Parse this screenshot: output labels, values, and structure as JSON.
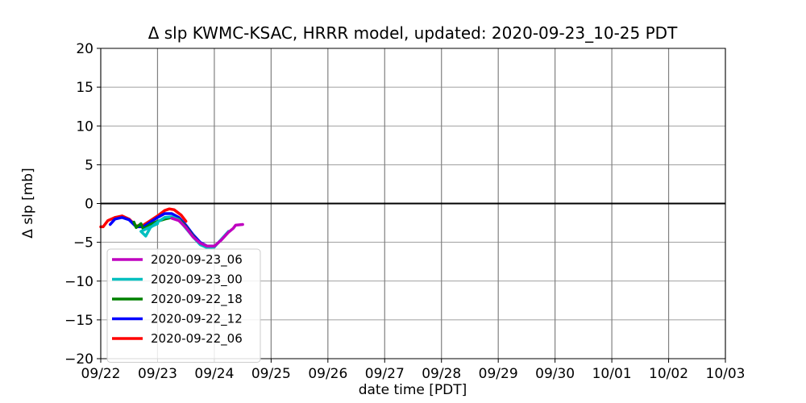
{
  "chart_data": {
    "type": "line",
    "title": "Δ slp KWMC-KSAC, HRRR model, updated: 2020-09-23_10-25 PDT",
    "xlabel": "date time [PDT]",
    "ylabel": "Δ slp [mb]",
    "xlim": [
      "2020-09-22 00:00",
      "2020-10-03 00:00"
    ],
    "ylim": [
      -20,
      20
    ],
    "x_ticks": [
      "09/22",
      "09/23",
      "09/24",
      "09/25",
      "09/26",
      "09/27",
      "09/28",
      "09/29",
      "09/30",
      "10/01",
      "10/02",
      "10/03"
    ],
    "y_ticks": [
      20,
      15,
      10,
      5,
      0,
      -5,
      -10,
      -15,
      -20
    ],
    "y_tick_labels": [
      "20",
      "15",
      "10",
      "5",
      "0",
      "−5",
      "−10",
      "−15",
      "−20"
    ],
    "grid": true,
    "zero_line": 0,
    "legend_position": "lower-left",
    "series": [
      {
        "name": "2020-09-23_06",
        "color": "#bf00bf",
        "points": [
          [
            "2020-09-23 06:00",
            -1.9
          ],
          [
            "2020-09-23 09:00",
            -2.2
          ],
          [
            "2020-09-23 12:00",
            -3.1
          ],
          [
            "2020-09-23 15:00",
            -4.3
          ],
          [
            "2020-09-23 18:00",
            -5.1
          ],
          [
            "2020-09-23 21:00",
            -5.5
          ],
          [
            "2020-09-24 00:00",
            -5.5
          ],
          [
            "2020-09-24 03:00",
            -4.7
          ],
          [
            "2020-09-24 06:00",
            -3.7
          ],
          [
            "2020-09-24 08:00",
            -3.2
          ],
          [
            "2020-09-24 09:00",
            -2.8
          ],
          [
            "2020-09-24 12:00",
            -2.7
          ]
        ]
      },
      {
        "name": "2020-09-23_00",
        "color": "#00bfbf",
        "points": [
          [
            "2020-09-23 00:00",
            -2.6
          ],
          [
            "2020-09-22 17:00",
            -3.6
          ],
          [
            "2020-09-22 19:00",
            -4.2
          ],
          [
            "2020-09-22 21:00",
            -3.1
          ],
          [
            "2020-09-23 00:00",
            -2.4
          ],
          [
            "2020-09-23 03:00",
            -1.8
          ],
          [
            "2020-09-23 06:00",
            -1.7
          ],
          [
            "2020-09-23 09:00",
            -2.1
          ],
          [
            "2020-09-23 12:00",
            -3.2
          ],
          [
            "2020-09-23 15:00",
            -4.3
          ],
          [
            "2020-09-23 18:00",
            -5.3
          ],
          [
            "2020-09-23 21:00",
            -5.7
          ],
          [
            "2020-09-24 00:00",
            -5.6
          ],
          [
            "2020-09-24 03:00",
            -4.6
          ],
          [
            "2020-09-24 06:00",
            -3.6
          ]
        ]
      },
      {
        "name": "2020-09-22_18",
        "color": "#008000",
        "points": [
          [
            "2020-09-22 14:00",
            -2.4
          ],
          [
            "2020-09-22 15:00",
            -3.1
          ],
          [
            "2020-09-22 17:00",
            -2.6
          ],
          [
            "2020-09-22 18:00",
            -3.3
          ],
          [
            "2020-09-22 21:00",
            -2.7
          ],
          [
            "2020-09-23 00:00",
            -2.3
          ],
          [
            "2020-09-23 03:00",
            -2.0
          ],
          [
            "2020-09-23 06:00",
            -1.8
          ],
          [
            "2020-09-23 09:00",
            -2.0
          ],
          [
            "2020-09-23 12:00",
            -3.0
          ],
          [
            "2020-09-23 15:00",
            -4.2
          ],
          [
            "2020-09-23 18:00",
            -5.2
          ],
          [
            "2020-09-23 21:00",
            -5.6
          ],
          [
            "2020-09-24 00:00",
            -5.6
          ]
        ]
      },
      {
        "name": "2020-09-22_12",
        "color": "#0000ff",
        "points": [
          [
            "2020-09-22 04:00",
            -2.7
          ],
          [
            "2020-09-22 06:00",
            -2.0
          ],
          [
            "2020-09-22 09:00",
            -1.8
          ],
          [
            "2020-09-22 12:00",
            -2.1
          ],
          [
            "2020-09-22 15:00",
            -3.0
          ],
          [
            "2020-09-22 18:00",
            -3.0
          ],
          [
            "2020-09-22 21:00",
            -2.4
          ],
          [
            "2020-09-23 00:00",
            -1.8
          ],
          [
            "2020-09-23 03:00",
            -1.3
          ],
          [
            "2020-09-23 06:00",
            -1.3
          ],
          [
            "2020-09-23 09:00",
            -1.8
          ],
          [
            "2020-09-23 12:00",
            -2.8
          ],
          [
            "2020-09-23 15:00",
            -4.0
          ],
          [
            "2020-09-23 18:00",
            -5.0
          ],
          [
            "2020-09-23 21:00",
            -5.5
          ],
          [
            "2020-09-24 00:00",
            -5.5
          ]
        ]
      },
      {
        "name": "2020-09-22_06",
        "color": "#ff0000",
        "points": [
          [
            "2020-09-22 00:00",
            -3.0
          ],
          [
            "2020-09-22 01:00",
            -3.0
          ],
          [
            "2020-09-22 03:00",
            -2.2
          ],
          [
            "2020-09-22 06:00",
            -1.8
          ],
          [
            "2020-09-22 09:00",
            -1.6
          ],
          [
            "2020-09-22 12:00",
            -2.0
          ],
          [
            "2020-09-22 15:00",
            -2.9
          ],
          [
            "2020-09-22 18:00",
            -2.8
          ],
          [
            "2020-09-22 21:00",
            -2.2
          ],
          [
            "2020-09-23 00:00",
            -1.6
          ],
          [
            "2020-09-23 03:00",
            -0.9
          ],
          [
            "2020-09-23 05:00",
            -0.7
          ],
          [
            "2020-09-23 07:00",
            -0.8
          ],
          [
            "2020-09-23 10:00",
            -1.5
          ],
          [
            "2020-09-23 12:00",
            -2.3
          ]
        ]
      }
    ]
  }
}
